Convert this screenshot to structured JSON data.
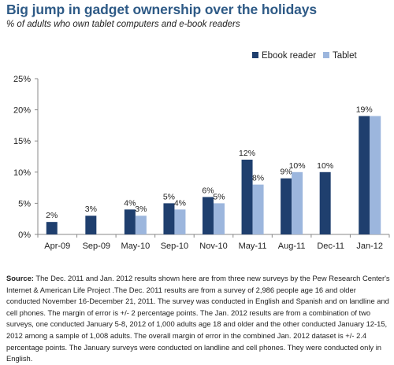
{
  "title": "Big jump in gadget ownership over the holidays",
  "subtitle": "% of adults who own tablet computers and e-book readers",
  "colors": {
    "ebook": "#1f3f6e",
    "tablet": "#9cb6dd",
    "title": "#2e5a86"
  },
  "chart_data": {
    "type": "bar",
    "categories": [
      "Apr-09",
      "Sep-09",
      "May-10",
      "Sep-10",
      "Nov-10",
      "May-11",
      "Aug-11",
      "Dec-11",
      "Jan-12"
    ],
    "series": [
      {
        "name": "Ebook reader",
        "values": [
          2,
          3,
          4,
          5,
          6,
          12,
          9,
          10,
          19
        ],
        "labels": [
          "2%",
          "3%",
          "4%",
          "5%",
          "6%",
          "12%",
          "9%",
          "10%",
          "19%"
        ]
      },
      {
        "name": "Tablet",
        "values": [
          null,
          null,
          3,
          4,
          5,
          8,
          10,
          null,
          19
        ],
        "labels": [
          null,
          null,
          "3%",
          "4%",
          "5%",
          "8%",
          "10%",
          null,
          null
        ]
      }
    ],
    "yticks": [
      "0%",
      "5%",
      "10%",
      "15%",
      "20%",
      "25%"
    ],
    "ylim": [
      0,
      25
    ],
    "legend_position": "top-right",
    "grid": false
  },
  "source": {
    "label": "Source:",
    "text": "The Dec. 2011 and Jan. 2012 results shown here are from three new surveys by the Pew Research Center's Internet & American Life Project .The Dec. 2011 results are from a survey of 2,986 people age 16 and older conducted November 16-December 21, 2011. The survey was conducted in English and Spanish and on landline and cell phones. The margin of error is +/- 2 percentage points. The Jan. 2012 results are from a combination of two surveys, one conducted January 5-8, 2012 of 1,000 adults age 18 and older and the other conducted January 12-15, 2012 among a sample of 1,008 adults. The overall margin of error in the combined Jan. 2012 dataset is +/- 2.4 percentage points. The January surveys were conducted on landline and cell phones. They were conducted only in English."
  }
}
